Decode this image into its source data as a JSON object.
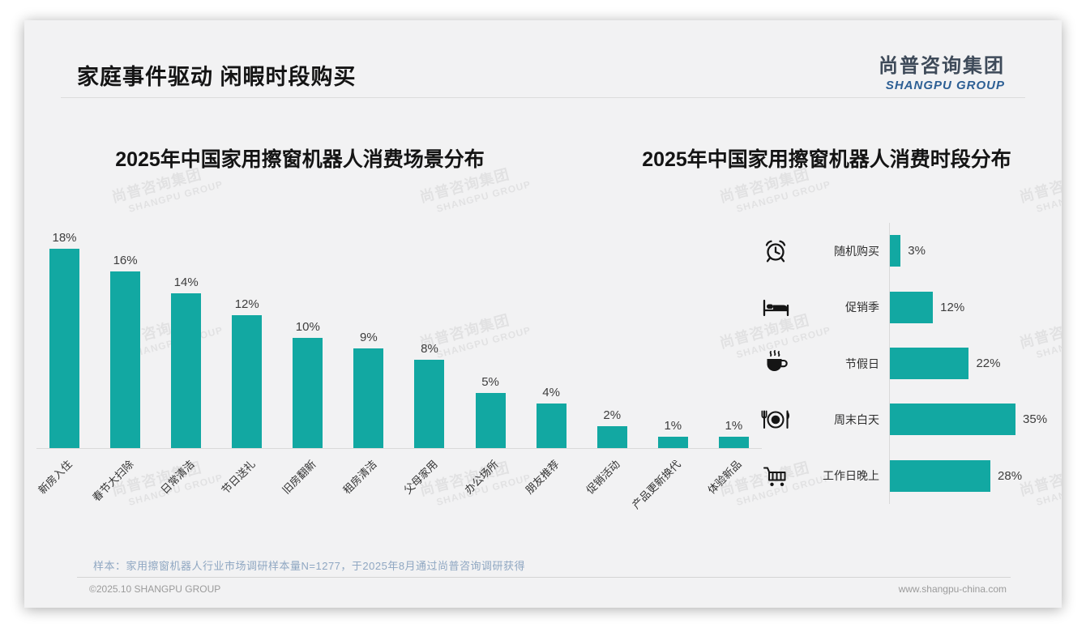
{
  "slide": {
    "title": "家庭事件驱动 闲暇时段购买",
    "logo": {
      "cn": "尚普咨询集团",
      "en": "SHANGPU GROUP"
    },
    "watermark": {
      "cn": "尚普咨询集团",
      "en": "SHANGPU GROUP"
    },
    "footnote": "样本：家用擦窗机器人行业市场调研样本量N=1277，于2025年8月通过尚普咨询调研获得",
    "footer": {
      "left": "©2025.10 SHANGPU GROUP",
      "right": "www.shangpu-china.com"
    }
  },
  "colors": {
    "accent": "#12a8a2",
    "logo_cn": "#3e4a59",
    "logo_en": "#2d5f94",
    "footnote_blue": "#8fa7c2",
    "icon_black": "#151515"
  },
  "chart_data": [
    {
      "type": "bar",
      "orientation": "vertical",
      "title": "2025年中国家用擦窗机器人消费场景分布",
      "categories": [
        "新房入住",
        "春节大扫除",
        "日常清洁",
        "节日送礼",
        "旧房翻新",
        "租房清洁",
        "父母家用",
        "办公场所",
        "朋友推荐",
        "促销活动",
        "产品更新换代",
        "体验新品"
      ],
      "values": [
        18,
        16,
        14,
        12,
        10,
        9,
        8,
        5,
        4,
        2,
        1,
        1
      ],
      "unit": "%",
      "ylim": [
        0,
        18
      ],
      "grid": false,
      "data_labels": true,
      "legend": "none"
    },
    {
      "type": "bar",
      "orientation": "horizontal",
      "title": "2025年中国家用擦窗机器人消费时段分布",
      "categories": [
        "随机购买",
        "促销季",
        "节假日",
        "周末白天",
        "工作日晚上"
      ],
      "values": [
        3,
        12,
        22,
        35,
        28
      ],
      "icons": [
        "alarm-clock",
        "bed",
        "coffee",
        "dining",
        "shopping-cart"
      ],
      "unit": "%",
      "xlim": [
        0,
        40
      ],
      "grid": false,
      "data_labels": true,
      "legend": "none"
    }
  ]
}
